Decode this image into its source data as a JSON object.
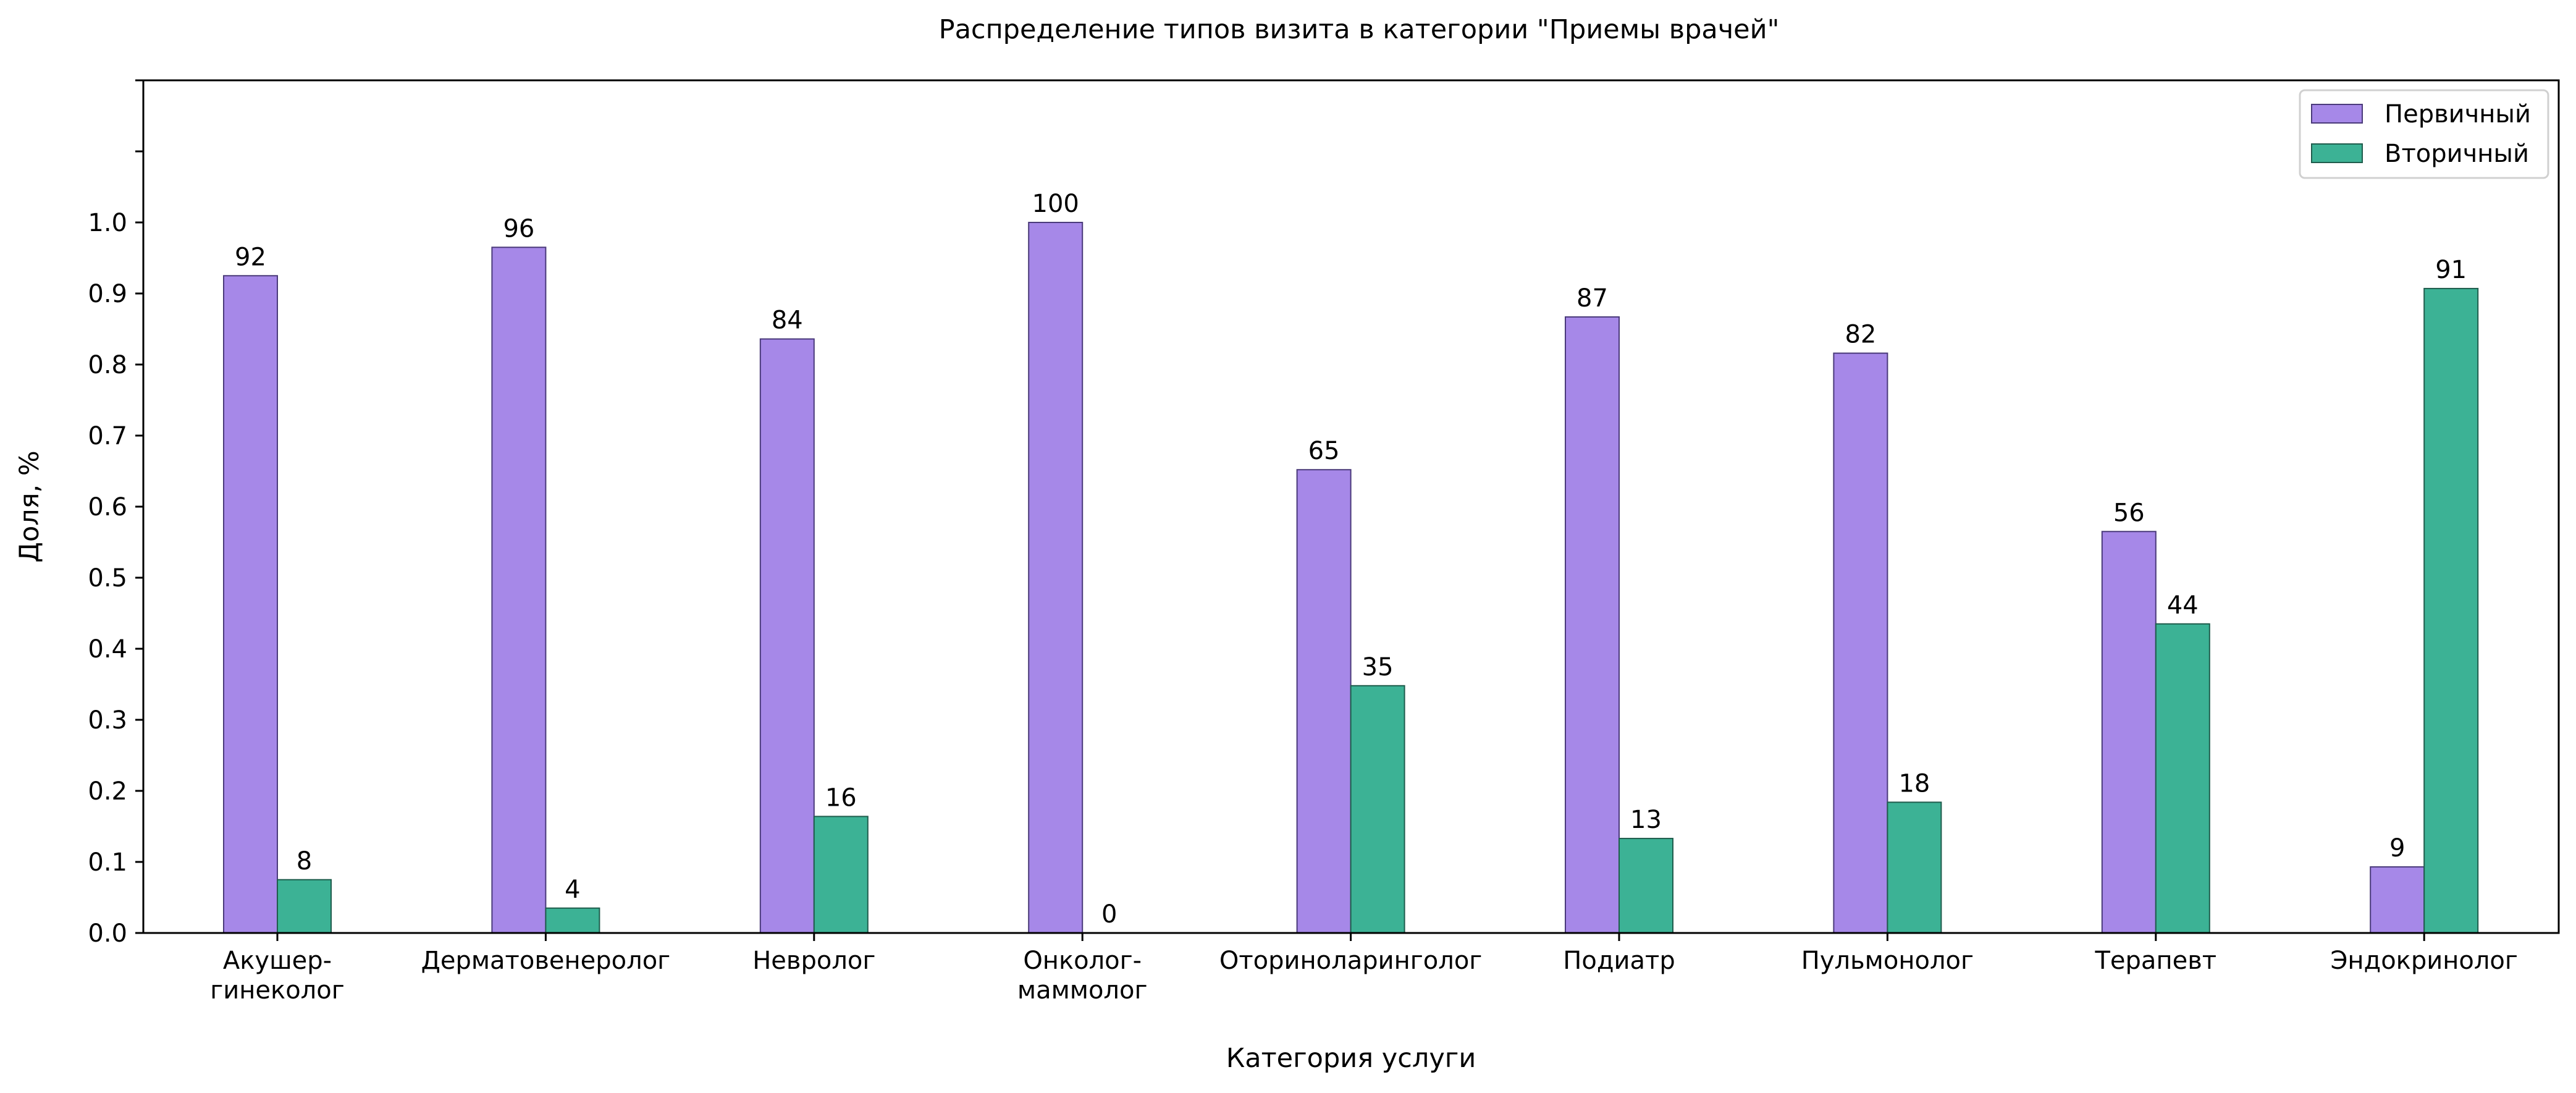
{
  "chart_data": {
    "type": "bar",
    "title": "Распределение типов визита в категории \"Приемы врачей\"",
    "xlabel": "Категория услуги",
    "ylabel": "Доля, %",
    "ylim": [
      0,
      1.2
    ],
    "yticks": [
      0.0,
      0.1,
      0.2,
      0.3,
      0.4,
      0.5,
      0.6,
      0.7,
      0.8,
      0.9,
      1.0,
      1.1,
      1.2
    ],
    "ytick_labels": [
      "0.0",
      "0.1",
      "0.2",
      "0.3",
      "0.4",
      "0.5",
      "0.6",
      "0.7",
      "0.8",
      "0.9",
      "1.0",
      "",
      ""
    ],
    "categories": [
      [
        "Акушер-",
        "гинеколог"
      ],
      [
        "Дерматовенеролог"
      ],
      [
        "Невролог"
      ],
      [
        "Онколог-",
        "маммолог"
      ],
      [
        "Оториноларинголог"
      ],
      [
        "Подиатр"
      ],
      [
        "Пульмонолог"
      ],
      [
        "Терапевт"
      ],
      [
        "Эндокринолог"
      ]
    ],
    "series": [
      {
        "name": "Первичный",
        "color": "#a688e8",
        "edge": "#4a3a7a",
        "values": [
          0.925,
          0.965,
          0.836,
          1.0,
          0.652,
          0.867,
          0.816,
          0.565,
          0.093
        ],
        "labels": [
          "92",
          "96",
          "84",
          "100",
          "65",
          "87",
          "82",
          "56",
          "9"
        ]
      },
      {
        "name": "Вторичный",
        "color": "#3cb295",
        "edge": "#1f5c4c",
        "values": [
          0.075,
          0.035,
          0.164,
          0.0,
          0.348,
          0.133,
          0.184,
          0.435,
          0.907
        ],
        "labels": [
          "8",
          "4",
          "16",
          "0",
          "35",
          "13",
          "18",
          "44",
          "91"
        ]
      }
    ],
    "legend": "top-right",
    "grid": false
  }
}
